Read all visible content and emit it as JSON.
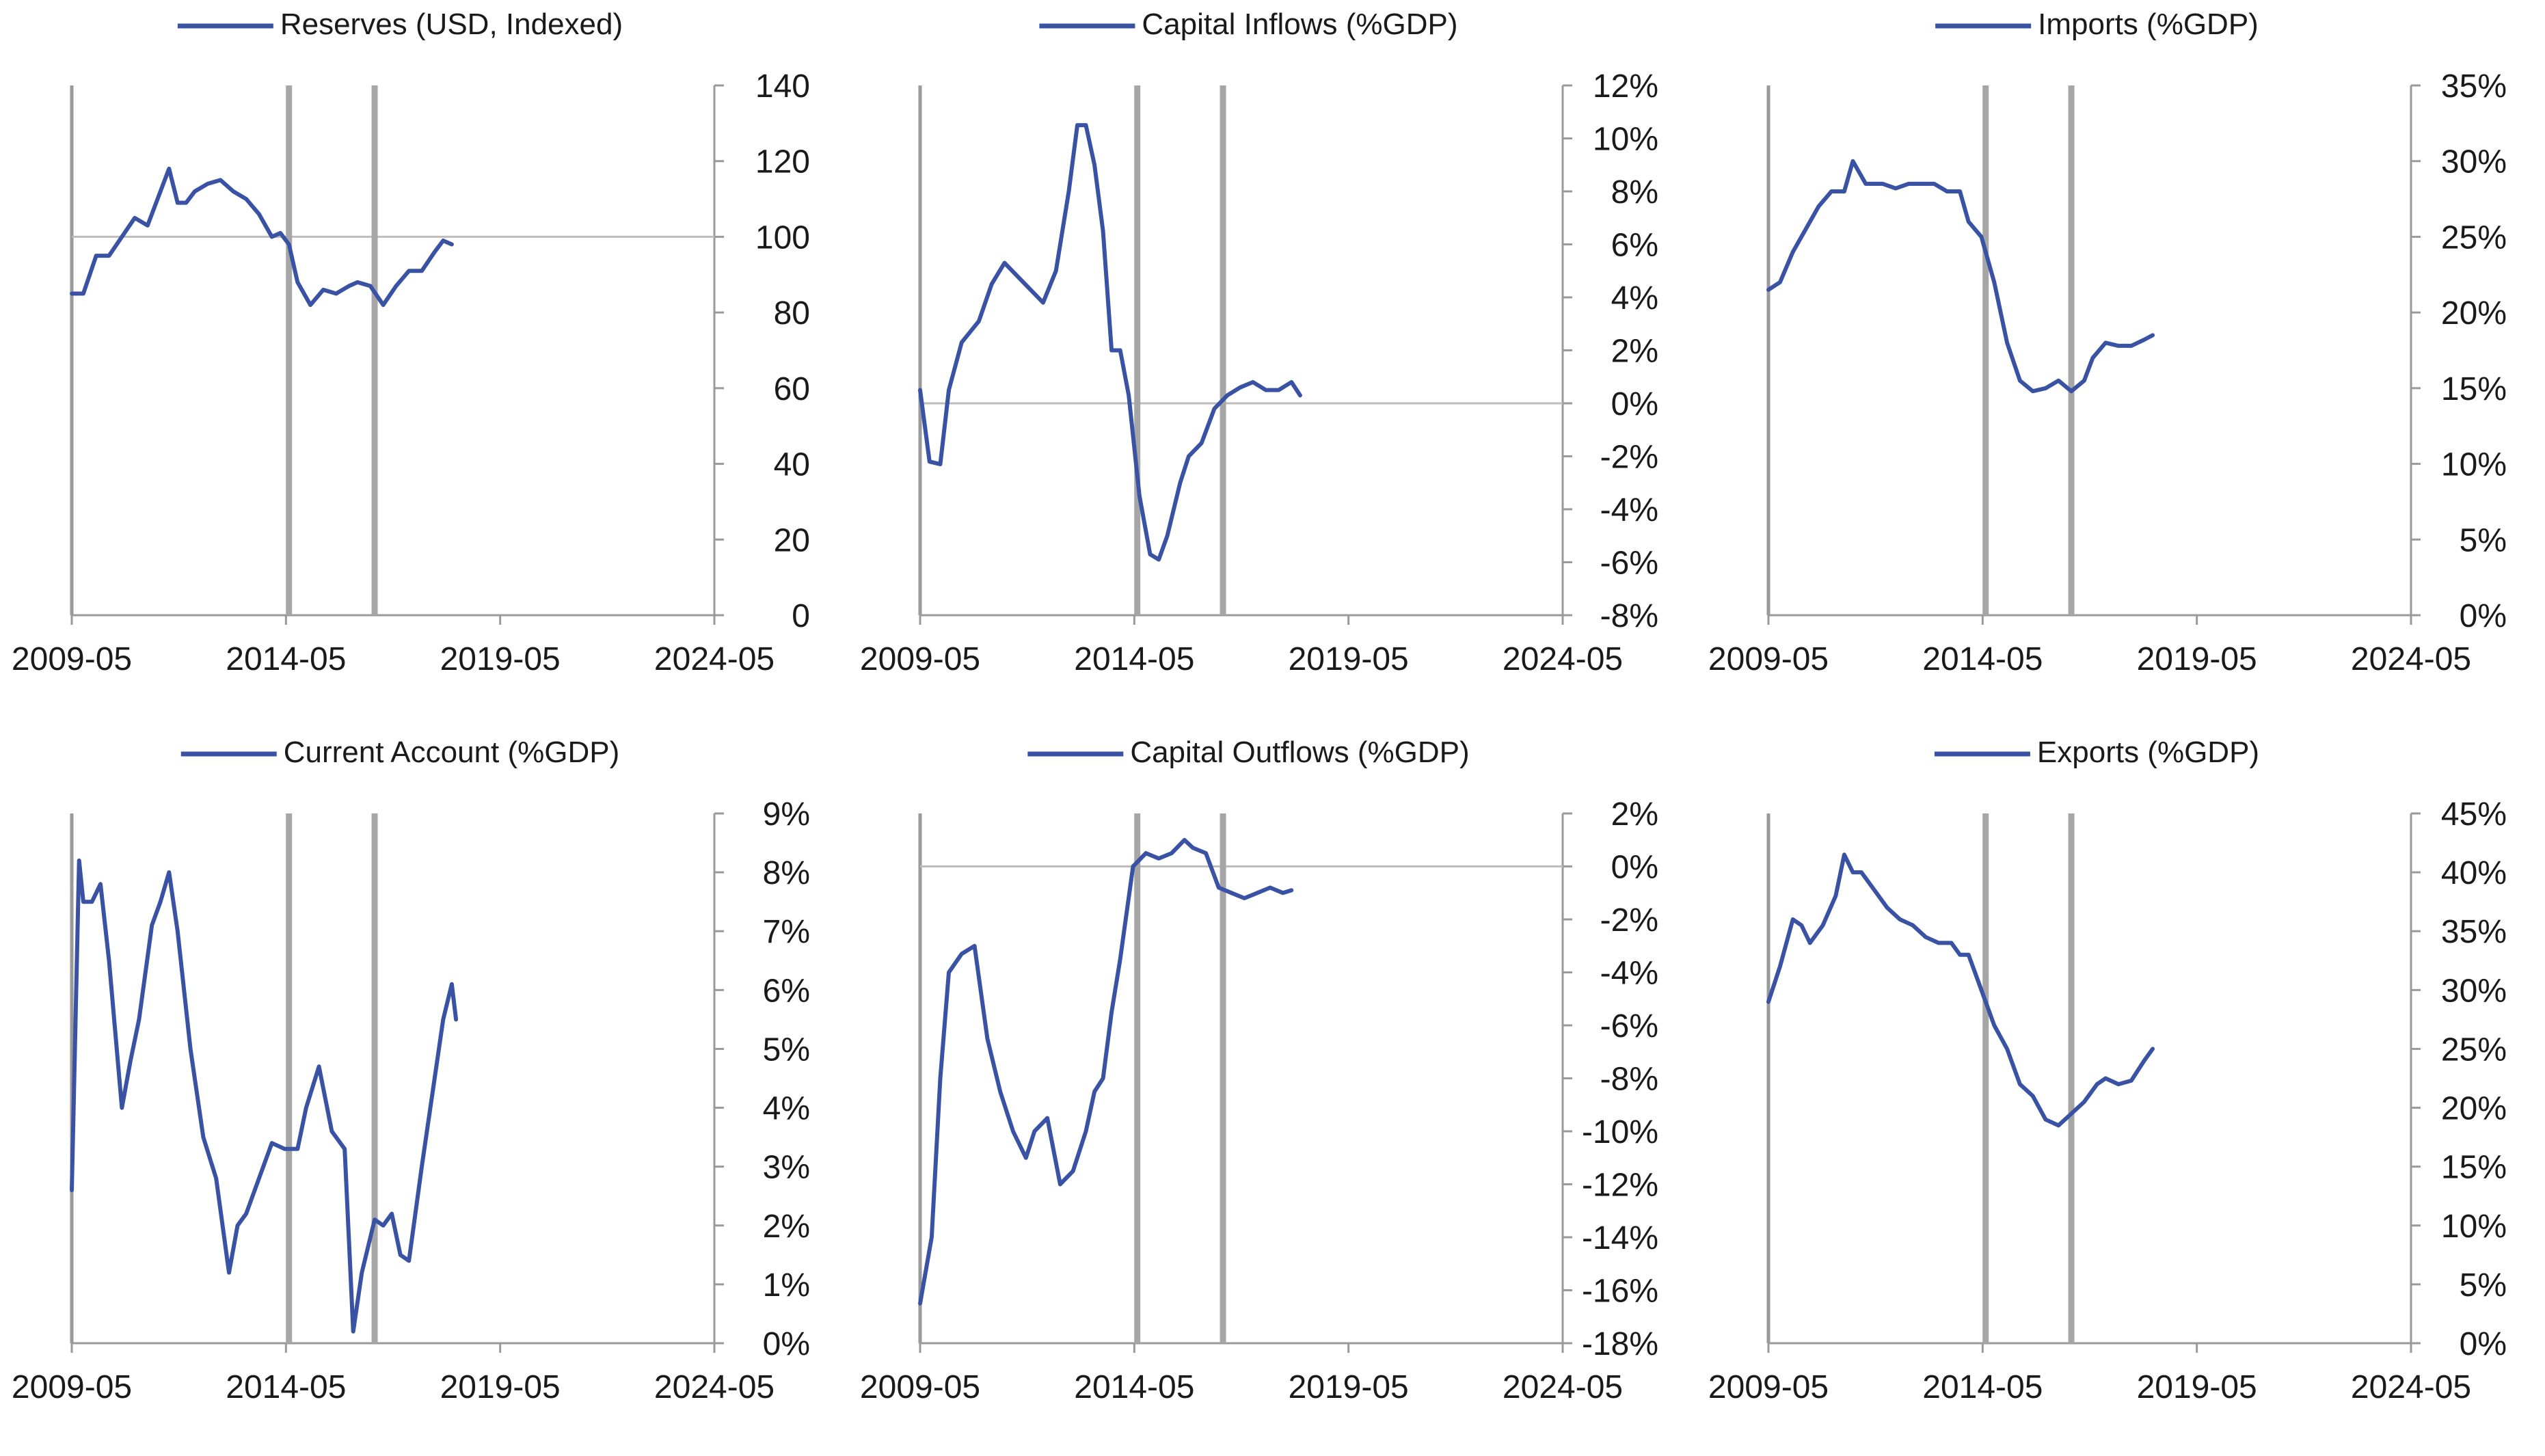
{
  "colors": {
    "series": "#3A52A4",
    "axis": "#9A9A9A",
    "event_line": "#A6A6A6",
    "text": "#1A1A1A"
  },
  "shared": {
    "x_ticks": [
      "2009-05",
      "2014-05",
      "2019-05",
      "2024-05"
    ],
    "x_tick_values": [
      2009.33,
      2014.33,
      2019.33,
      2024.33
    ],
    "xlim": [
      2009.33,
      2024.33
    ],
    "event_lines_x": [
      2014.4,
      2016.4
    ]
  },
  "chart_data": [
    {
      "type": "line",
      "legend": "Reserves (USD, Indexed)",
      "y_ticks": [
        "0",
        "20",
        "40",
        "60",
        "80",
        "100",
        "120",
        "140"
      ],
      "ylim": [
        0,
        140
      ],
      "reference_line": 100,
      "series": [
        {
          "name": "Reserves (USD, Indexed)",
          "x": [
            2009.33,
            2009.6,
            2009.9,
            2010.2,
            2010.5,
            2010.8,
            2011.1,
            2011.4,
            2011.6,
            2011.8,
            2012.0,
            2012.2,
            2012.5,
            2012.8,
            2013.1,
            2013.4,
            2013.7,
            2014.0,
            2014.2,
            2014.4,
            2014.6,
            2014.9,
            2015.2,
            2015.5,
            2015.8,
            2016.0,
            2016.3,
            2016.6,
            2016.9,
            2017.2,
            2017.5,
            2017.8,
            2018.0,
            2018.2
          ],
          "y": [
            85,
            85,
            95,
            95,
            100,
            105,
            103,
            112,
            118,
            109,
            109,
            112,
            114,
            115,
            112,
            110,
            106,
            100,
            101,
            98,
            88,
            82,
            86,
            85,
            87,
            88,
            87,
            82,
            87,
            91,
            91,
            96,
            99,
            98
          ]
        }
      ]
    },
    {
      "type": "line",
      "legend": "Capital Inflows (%GDP)",
      "y_ticks": [
        "-8%",
        "-6%",
        "-4%",
        "-2%",
        "0%",
        "2%",
        "4%",
        "6%",
        "8%",
        "10%",
        "12%"
      ],
      "ylim": [
        -8,
        12
      ],
      "reference_line": 0,
      "series": [
        {
          "name": "Capital Inflows (%GDP)",
          "x": [
            2009.33,
            2009.55,
            2009.8,
            2010.0,
            2010.3,
            2010.7,
            2011.0,
            2011.3,
            2011.6,
            2011.9,
            2012.2,
            2012.5,
            2012.8,
            2013.0,
            2013.2,
            2013.4,
            2013.6,
            2013.8,
            2014.0,
            2014.2,
            2014.45,
            2014.7,
            2014.9,
            2015.1,
            2015.4,
            2015.6,
            2015.9,
            2016.2,
            2016.5,
            2016.8,
            2017.1,
            2017.4,
            2017.7,
            2018.0,
            2018.2
          ],
          "y": [
            0.5,
            -2.2,
            -2.3,
            0.5,
            2.3,
            3.1,
            4.5,
            5.3,
            4.8,
            4.3,
            3.8,
            5.0,
            8.0,
            10.5,
            10.5,
            9.0,
            6.5,
            2.0,
            2.0,
            0.3,
            -3.5,
            -5.7,
            -5.9,
            -5.0,
            -3.0,
            -2.0,
            -1.5,
            -0.2,
            0.3,
            0.6,
            0.8,
            0.5,
            0.5,
            0.8,
            0.3
          ]
        }
      ]
    },
    {
      "type": "line",
      "legend": "Imports (%GDP)",
      "y_ticks": [
        "0%",
        "5%",
        "10%",
        "15%",
        "20%",
        "25%",
        "30%",
        "35%"
      ],
      "ylim": [
        0,
        35
      ],
      "series": [
        {
          "name": "Imports (%GDP)",
          "x": [
            2009.33,
            2009.6,
            2009.9,
            2010.2,
            2010.5,
            2010.8,
            2011.1,
            2011.3,
            2011.6,
            2011.8,
            2012.0,
            2012.3,
            2012.6,
            2012.9,
            2013.2,
            2013.5,
            2013.8,
            2014.0,
            2014.3,
            2014.6,
            2014.9,
            2015.2,
            2015.5,
            2015.8,
            2016.1,
            2016.4,
            2016.7,
            2016.9,
            2017.2,
            2017.5,
            2017.8,
            2018.1,
            2018.3
          ],
          "y": [
            21.5,
            22,
            24,
            25.5,
            27,
            28,
            28,
            30,
            28.5,
            28.5,
            28.5,
            28.2,
            28.5,
            28.5,
            28.5,
            28.0,
            28,
            26,
            25,
            22,
            18,
            15.5,
            14.8,
            15.0,
            15.5,
            14.8,
            15.5,
            17,
            18,
            17.8,
            17.8,
            18.2,
            18.5
          ]
        }
      ]
    },
    {
      "type": "line",
      "legend": "Current Account (%GDP)",
      "y_ticks": [
        "0%",
        "1%",
        "2%",
        "3%",
        "4%",
        "5%",
        "6%",
        "7%",
        "8%",
        "9%"
      ],
      "ylim": [
        0,
        9
      ],
      "series": [
        {
          "name": "Current Account (%GDP)",
          "x": [
            2009.33,
            2009.5,
            2009.6,
            2009.8,
            2010.0,
            2010.2,
            2010.5,
            2010.7,
            2010.9,
            2011.2,
            2011.4,
            2011.6,
            2011.8,
            2012.1,
            2012.4,
            2012.7,
            2013.0,
            2013.2,
            2013.4,
            2013.7,
            2014.0,
            2014.3,
            2014.6,
            2014.8,
            2015.1,
            2015.4,
            2015.7,
            2015.9,
            2016.1,
            2016.4,
            2016.6,
            2016.8,
            2017.0,
            2017.2,
            2017.5,
            2017.8,
            2018.0,
            2018.2,
            2018.3
          ],
          "y": [
            2.6,
            8.2,
            7.5,
            7.5,
            7.8,
            6.5,
            4.0,
            4.8,
            5.5,
            7.1,
            7.5,
            8.0,
            7.0,
            5.0,
            3.5,
            2.8,
            1.2,
            2.0,
            2.2,
            2.8,
            3.4,
            3.3,
            3.3,
            4.0,
            4.7,
            3.6,
            3.3,
            0.2,
            1.2,
            2.1,
            2.0,
            2.2,
            1.5,
            1.4,
            3.0,
            4.5,
            5.5,
            6.1,
            5.5
          ]
        }
      ]
    },
    {
      "type": "line",
      "legend": "Capital Outflows (%GDP)",
      "y_ticks": [
        "-18%",
        "-16%",
        "-14%",
        "-12%",
        "-10%",
        "-8%",
        "-6%",
        "-4%",
        "-2%",
        "0%",
        "2%"
      ],
      "ylim": [
        -18,
        2
      ],
      "reference_line": 0,
      "series": [
        {
          "name": "Capital Outflows (%GDP)",
          "x": [
            2009.33,
            2009.6,
            2009.8,
            2010.0,
            2010.3,
            2010.6,
            2010.9,
            2011.2,
            2011.5,
            2011.8,
            2012.0,
            2012.3,
            2012.6,
            2012.9,
            2013.2,
            2013.4,
            2013.6,
            2013.8,
            2014.0,
            2014.3,
            2014.6,
            2014.9,
            2015.2,
            2015.5,
            2015.7,
            2016.0,
            2016.3,
            2016.6,
            2016.9,
            2017.2,
            2017.5,
            2017.8,
            2018.0
          ],
          "y": [
            -16.5,
            -14,
            -8,
            -4,
            -3.3,
            -3,
            -6.5,
            -8.5,
            -10,
            -11,
            -10,
            -9.5,
            -12,
            -11.5,
            -10,
            -8.5,
            -8,
            -5.5,
            -3.5,
            0,
            0.5,
            0.3,
            0.5,
            1,
            0.7,
            0.5,
            -0.8,
            -1,
            -1.2,
            -1,
            -0.8,
            -1.0,
            -0.9
          ]
        }
      ]
    },
    {
      "type": "line",
      "legend": "Exports (%GDP)",
      "y_ticks": [
        "0%",
        "5%",
        "10%",
        "15%",
        "20%",
        "25%",
        "30%",
        "35%",
        "40%",
        "45%"
      ],
      "ylim": [
        0,
        45
      ],
      "series": [
        {
          "name": "Exports (%GDP)",
          "x": [
            2009.33,
            2009.6,
            2009.9,
            2010.1,
            2010.3,
            2010.6,
            2010.9,
            2011.1,
            2011.3,
            2011.5,
            2011.8,
            2012.1,
            2012.4,
            2012.7,
            2013.0,
            2013.3,
            2013.6,
            2013.8,
            2014.0,
            2014.3,
            2014.6,
            2014.9,
            2015.2,
            2015.5,
            2015.8,
            2016.1,
            2016.4,
            2016.7,
            2017.0,
            2017.2,
            2017.5,
            2017.8,
            2018.1,
            2018.3
          ],
          "y": [
            29,
            32,
            36,
            35.5,
            34,
            35.5,
            38,
            41.5,
            40,
            40,
            38.5,
            37,
            36,
            35.5,
            34.5,
            34,
            34,
            33,
            33,
            30,
            27,
            25,
            22,
            21,
            19,
            18.5,
            19.5,
            20.5,
            22,
            22.5,
            22,
            22.3,
            24,
            25
          ]
        }
      ]
    }
  ]
}
